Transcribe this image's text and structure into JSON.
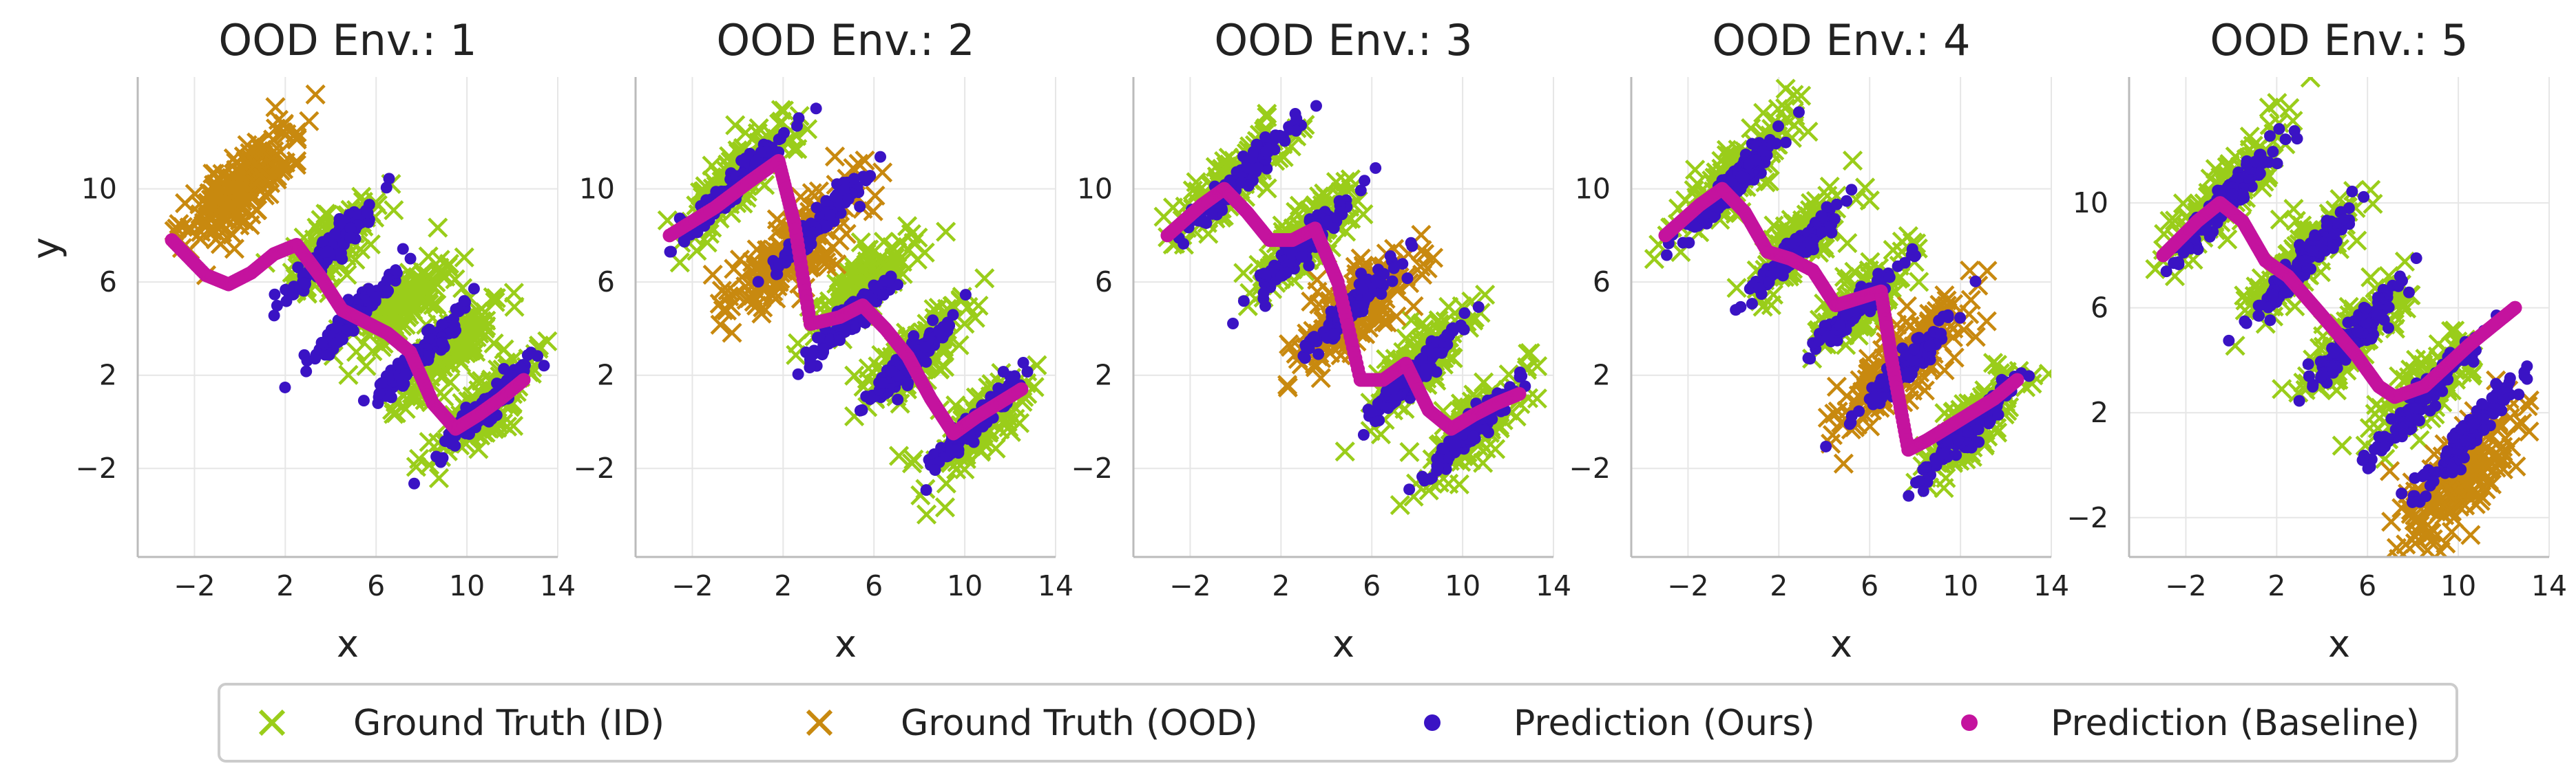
{
  "chart_data": {
    "type": "scatter",
    "ylabel": "y",
    "colors": {
      "id": "#9acd1a",
      "ood": "#c8890f",
      "ours": "#3a13c4",
      "baseline": "#c4139e",
      "grid": "#e6e6e6",
      "spine": "#bbbbbb"
    },
    "legend": {
      "placement": "bottom-center",
      "entries": [
        {
          "label": "Ground Truth (ID)",
          "marker": "x",
          "color": "#9acd1a"
        },
        {
          "label": "Ground Truth (OOD)",
          "marker": "x",
          "color": "#c8890f"
        },
        {
          "label": "Prediction (Ours)",
          "marker": "dot",
          "color": "#3a13c4"
        },
        {
          "label": "Prediction (Baseline)",
          "marker": "dot",
          "color": "#c4139e"
        }
      ]
    },
    "panels": [
      {
        "title": "OOD Env.: 1",
        "xlabel": "x",
        "show_ylabel": true,
        "xlim": [
          -4.5,
          14
        ],
        "ylim": [
          -5.8,
          14.8
        ],
        "xticks": [
          -2,
          2,
          6,
          10,
          14
        ],
        "yticks": [
          -2,
          2,
          6,
          10
        ],
        "ood_clusters": [
          {
            "cx": 0,
            "cy": 10,
            "len": 3.6,
            "width": 1.3
          }
        ],
        "id_clusters": [
          {
            "cx": 4,
            "cy": 7.5,
            "len": 3.2,
            "width": 1.1
          },
          {
            "cx": 7,
            "cy": 5,
            "len": 3.2,
            "width": 1.1
          },
          {
            "cx": 9,
            "cy": 3,
            "len": 3.2,
            "width": 1.1
          },
          {
            "cx": 11,
            "cy": 0.6,
            "len": 3.2,
            "width": 1.1
          }
        ],
        "ours_clusters": [
          {
            "cx": 4,
            "cy": 7.4,
            "len": 3.2,
            "width": 0.5
          },
          {
            "cx": 5,
            "cy": 4.5,
            "len": 3.0,
            "width": 0.5
          },
          {
            "cx": 8,
            "cy": 3,
            "len": 3.2,
            "width": 0.5
          },
          {
            "cx": 11,
            "cy": 0.7,
            "len": 3.2,
            "width": 0.5
          }
        ],
        "baseline_x": [
          -3,
          -1.5,
          -0.5,
          0.5,
          1.5,
          2.5,
          3.5,
          4.5,
          5.5,
          6.5,
          7.5,
          8.5,
          9.5,
          10.5,
          11.5,
          12.5
        ],
        "baseline_y": [
          7.8,
          6.3,
          5.9,
          6.4,
          7.2,
          7.6,
          6.3,
          4.8,
          4.3,
          3.8,
          3.0,
          0.8,
          -0.3,
          0.3,
          1.0,
          1.8
        ]
      },
      {
        "title": "OOD Env.: 2",
        "xlabel": "x",
        "show_ylabel": false,
        "xlim": [
          -4.5,
          14
        ],
        "ylim": [
          -5.8,
          14.8
        ],
        "xticks": [
          -2,
          2,
          6,
          10,
          14
        ],
        "yticks": [
          -2,
          2,
          6,
          10
        ],
        "ood_clusters": [
          {
            "cx": 2.5,
            "cy": 7.3,
            "len": 4.5,
            "width": 1.4
          }
        ],
        "id_clusters": [
          {
            "cx": 0,
            "cy": 10.5,
            "len": 4.0,
            "width": 1.1
          },
          {
            "cx": 5.5,
            "cy": 5.8,
            "len": 3.2,
            "width": 1.1
          },
          {
            "cx": 8,
            "cy": 3,
            "len": 3.2,
            "width": 1.1
          },
          {
            "cx": 10.5,
            "cy": -0.2,
            "len": 3.2,
            "width": 1.1
          }
        ],
        "ours_clusters": [
          {
            "cx": 0,
            "cy": 10.3,
            "len": 3.6,
            "width": 0.5
          },
          {
            "cx": 3.5,
            "cy": 8.5,
            "len": 3.2,
            "width": 0.5
          },
          {
            "cx": 5,
            "cy": 4.5,
            "len": 3.0,
            "width": 0.5
          },
          {
            "cx": 7.5,
            "cy": 2.5,
            "len": 3.2,
            "width": 0.5
          },
          {
            "cx": 10.5,
            "cy": 0,
            "len": 3.2,
            "width": 0.5
          }
        ],
        "baseline_x": [
          -3,
          -1,
          0.5,
          1.8,
          2.5,
          3.2,
          4.5,
          5.5,
          6.5,
          7.5,
          8.5,
          9.5,
          10.5,
          11.5,
          12.5
        ],
        "baseline_y": [
          8.0,
          9.2,
          10.3,
          11.2,
          8.5,
          4.2,
          4.5,
          5.0,
          4.0,
          2.8,
          1.0,
          -0.5,
          0.2,
          0.8,
          1.4
        ]
      },
      {
        "title": "OOD Env.: 3",
        "xlabel": "x",
        "show_ylabel": false,
        "xlim": [
          -4.5,
          14
        ],
        "ylim": [
          -5.8,
          14.8
        ],
        "xticks": [
          -2,
          2,
          6,
          10,
          14
        ],
        "yticks": [
          -2,
          2,
          6,
          10
        ],
        "ood_clusters": [
          {
            "cx": 5.5,
            "cy": 5,
            "len": 4.2,
            "width": 1.4
          }
        ],
        "id_clusters": [
          {
            "cx": 0,
            "cy": 10.5,
            "len": 4.0,
            "width": 1.1
          },
          {
            "cx": 3,
            "cy": 7.8,
            "len": 3.2,
            "width": 1.1
          },
          {
            "cx": 8,
            "cy": 2.5,
            "len": 3.2,
            "width": 1.1
          },
          {
            "cx": 10.5,
            "cy": -0.2,
            "len": 3.2,
            "width": 1.1
          }
        ],
        "ours_clusters": [
          {
            "cx": 0,
            "cy": 10.3,
            "len": 3.6,
            "width": 0.5
          },
          {
            "cx": 3,
            "cy": 7.6,
            "len": 3.2,
            "width": 0.5
          },
          {
            "cx": 5,
            "cy": 4.8,
            "len": 3.0,
            "width": 0.5
          },
          {
            "cx": 8,
            "cy": 2.2,
            "len": 3.2,
            "width": 0.5
          },
          {
            "cx": 10.5,
            "cy": -0.2,
            "len": 3.2,
            "width": 0.5
          }
        ],
        "baseline_x": [
          -3,
          -1.5,
          -0.5,
          0.5,
          1.5,
          2.5,
          3.5,
          4.5,
          5.5,
          6.5,
          7.5,
          8.5,
          9.5,
          10.5,
          11.5,
          12.5
        ],
        "baseline_y": [
          8.0,
          9.3,
          10.0,
          9.0,
          7.8,
          7.8,
          8.3,
          6.0,
          1.8,
          1.8,
          2.5,
          0.5,
          -0.3,
          0.3,
          0.8,
          1.2
        ]
      },
      {
        "title": "OOD Env.: 4",
        "xlabel": "x",
        "show_ylabel": false,
        "xlim": [
          -4.5,
          14
        ],
        "ylim": [
          -5.8,
          14.8
        ],
        "xticks": [
          -2,
          2,
          6,
          10,
          14
        ],
        "yticks": [
          -2,
          2,
          6,
          10
        ],
        "ood_clusters": [
          {
            "cx": 7.5,
            "cy": 2.5,
            "len": 4.4,
            "width": 1.4
          }
        ],
        "id_clusters": [
          {
            "cx": 0,
            "cy": 10.5,
            "len": 4.0,
            "width": 1.1
          },
          {
            "cx": 3,
            "cy": 7.8,
            "len": 3.2,
            "width": 1.1
          },
          {
            "cx": 5.5,
            "cy": 5,
            "len": 3.2,
            "width": 1.1
          },
          {
            "cx": 10.5,
            "cy": -0.2,
            "len": 3.2,
            "width": 1.1
          }
        ],
        "ours_clusters": [
          {
            "cx": 0,
            "cy": 10.3,
            "len": 3.6,
            "width": 0.5
          },
          {
            "cx": 3,
            "cy": 7.6,
            "len": 3.2,
            "width": 0.5
          },
          {
            "cx": 5.5,
            "cy": 5,
            "len": 3.0,
            "width": 0.5
          },
          {
            "cx": 7.5,
            "cy": 2.3,
            "len": 3.2,
            "width": 0.5
          },
          {
            "cx": 10.5,
            "cy": -0.2,
            "len": 3.2,
            "width": 0.5
          }
        ],
        "baseline_x": [
          -3,
          -1.5,
          -0.5,
          0.5,
          1.5,
          2.5,
          3.5,
          4.5,
          5.5,
          6.5,
          7.0,
          7.7,
          8.5,
          9.5,
          10.5,
          11.5,
          12.5
        ],
        "baseline_y": [
          8.0,
          9.3,
          10.0,
          9.0,
          7.3,
          7.0,
          6.5,
          5.0,
          5.3,
          5.6,
          2.5,
          -1.2,
          -0.8,
          -0.2,
          0.4,
          1.0,
          1.8
        ]
      },
      {
        "title": "OOD Env.: 5",
        "xlabel": "x",
        "show_ylabel": false,
        "xlim": [
          -4.5,
          14
        ],
        "ylim": [
          -3.5,
          14.8
        ],
        "xticks": [
          -2,
          2,
          6,
          10,
          14
        ],
        "yticks": [
          -2,
          2,
          6,
          10
        ],
        "ood_clusters": [
          {
            "cx": 10,
            "cy": -0.5,
            "len": 3.8,
            "width": 1.5
          }
        ],
        "id_clusters": [
          {
            "cx": 0,
            "cy": 10.5,
            "len": 4.0,
            "width": 1.1
          },
          {
            "cx": 3,
            "cy": 7.8,
            "len": 3.2,
            "width": 1.1
          },
          {
            "cx": 5.5,
            "cy": 5,
            "len": 3.2,
            "width": 1.1
          },
          {
            "cx": 8.5,
            "cy": 2.8,
            "len": 3.2,
            "width": 1.1
          }
        ],
        "ours_clusters": [
          {
            "cx": 0,
            "cy": 10.3,
            "len": 3.6,
            "width": 0.5
          },
          {
            "cx": 3,
            "cy": 7.6,
            "len": 3.2,
            "width": 0.5
          },
          {
            "cx": 5.5,
            "cy": 5,
            "len": 3.0,
            "width": 0.5
          },
          {
            "cx": 8.5,
            "cy": 2.6,
            "len": 3.2,
            "width": 0.5
          },
          {
            "cx": 10.5,
            "cy": 1.2,
            "len": 3.2,
            "width": 0.5
          }
        ],
        "baseline_x": [
          -3,
          -1.5,
          -0.5,
          0.5,
          1.5,
          2.5,
          3.5,
          4.5,
          5.5,
          6.5,
          7.2,
          8.5,
          9.5,
          10.5,
          11.5,
          12.5
        ],
        "baseline_y": [
          8.0,
          9.3,
          10.0,
          9.3,
          7.8,
          7.2,
          6.2,
          5.2,
          4.2,
          3.0,
          2.6,
          3.0,
          3.8,
          4.6,
          5.3,
          6.0
        ]
      }
    ]
  }
}
